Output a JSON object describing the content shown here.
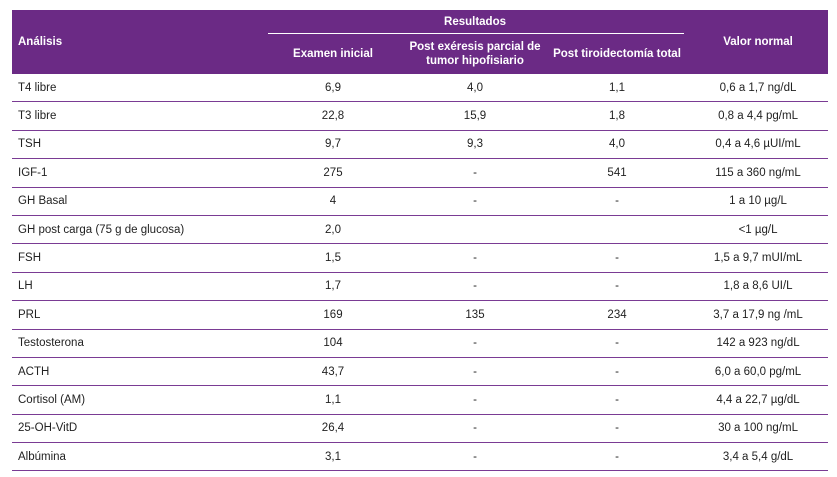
{
  "table": {
    "header": {
      "analysis": "Análisis",
      "results": "Resultados",
      "exam_initial": "Examen inicial",
      "post_exeresis": "Post exéresis parcial de tumor hipofisiario",
      "post_thyroid": "Post tiroidectomía total",
      "normal_value": "Valor normal"
    },
    "rows": [
      {
        "name": "T4 libre",
        "initial": "6,9",
        "post1": "4,0",
        "post2": "1,1",
        "normal": "0,6 a 1,7 ng/dL"
      },
      {
        "name": "T3 libre",
        "initial": "22,8",
        "post1": "15,9",
        "post2": "1,8",
        "normal": "0,8 a 4,4 pg/mL"
      },
      {
        "name": "TSH",
        "initial": "9,7",
        "post1": "9,3",
        "post2": "4,0",
        "normal": "0,4 a 4,6 µUI/mL"
      },
      {
        "name": "IGF-1",
        "initial": "275",
        "post1": "-",
        "post2": "541",
        "normal": "115 a 360 ng/mL"
      },
      {
        "name": "GH Basal",
        "initial": "4",
        "post1": "-",
        "post2": "-",
        "normal": "1 a 10 µg/L"
      },
      {
        "name": "GH post carga (75 g de glucosa)",
        "initial": "2,0",
        "post1": "",
        "post2": "",
        "normal": "<1 µg/L"
      },
      {
        "name": "FSH",
        "initial": "1,5",
        "post1": "-",
        "post2": "-",
        "normal": "1,5 a 9,7 mUI/mL"
      },
      {
        "name": "LH",
        "initial": "1,7",
        "post1": "-",
        "post2": "-",
        "normal": "1,8 a 8,6 UI/L"
      },
      {
        "name": "PRL",
        "initial": "169",
        "post1": "135",
        "post2": "234",
        "normal": "3,7 a 17,9 ng /mL"
      },
      {
        "name": "Testosterona",
        "initial": "104",
        "post1": "-",
        "post2": "-",
        "normal": "142 a 923 ng/dL"
      },
      {
        "name": "ACTH",
        "initial": "43,7",
        "post1": "-",
        "post2": "-",
        "normal": "6,0 a 60,0 pg/mL"
      },
      {
        "name": "Cortisol (AM)",
        "initial": "1,1",
        "post1": "-",
        "post2": "-",
        "normal": "4,4 a 22,7 µg/dL"
      },
      {
        "name": "25-OH-VitD",
        "initial": "26,4",
        "post1": "-",
        "post2": "-",
        "normal": "30 a 100 ng/mL"
      },
      {
        "name": "Albúmina",
        "initial": "3,1",
        "post1": "-",
        "post2": "-",
        "normal": "3,4 a 5,4 g/dL"
      }
    ]
  },
  "colors": {
    "header_bg": "#6b2a85",
    "row_divider": "#7a3b94"
  }
}
